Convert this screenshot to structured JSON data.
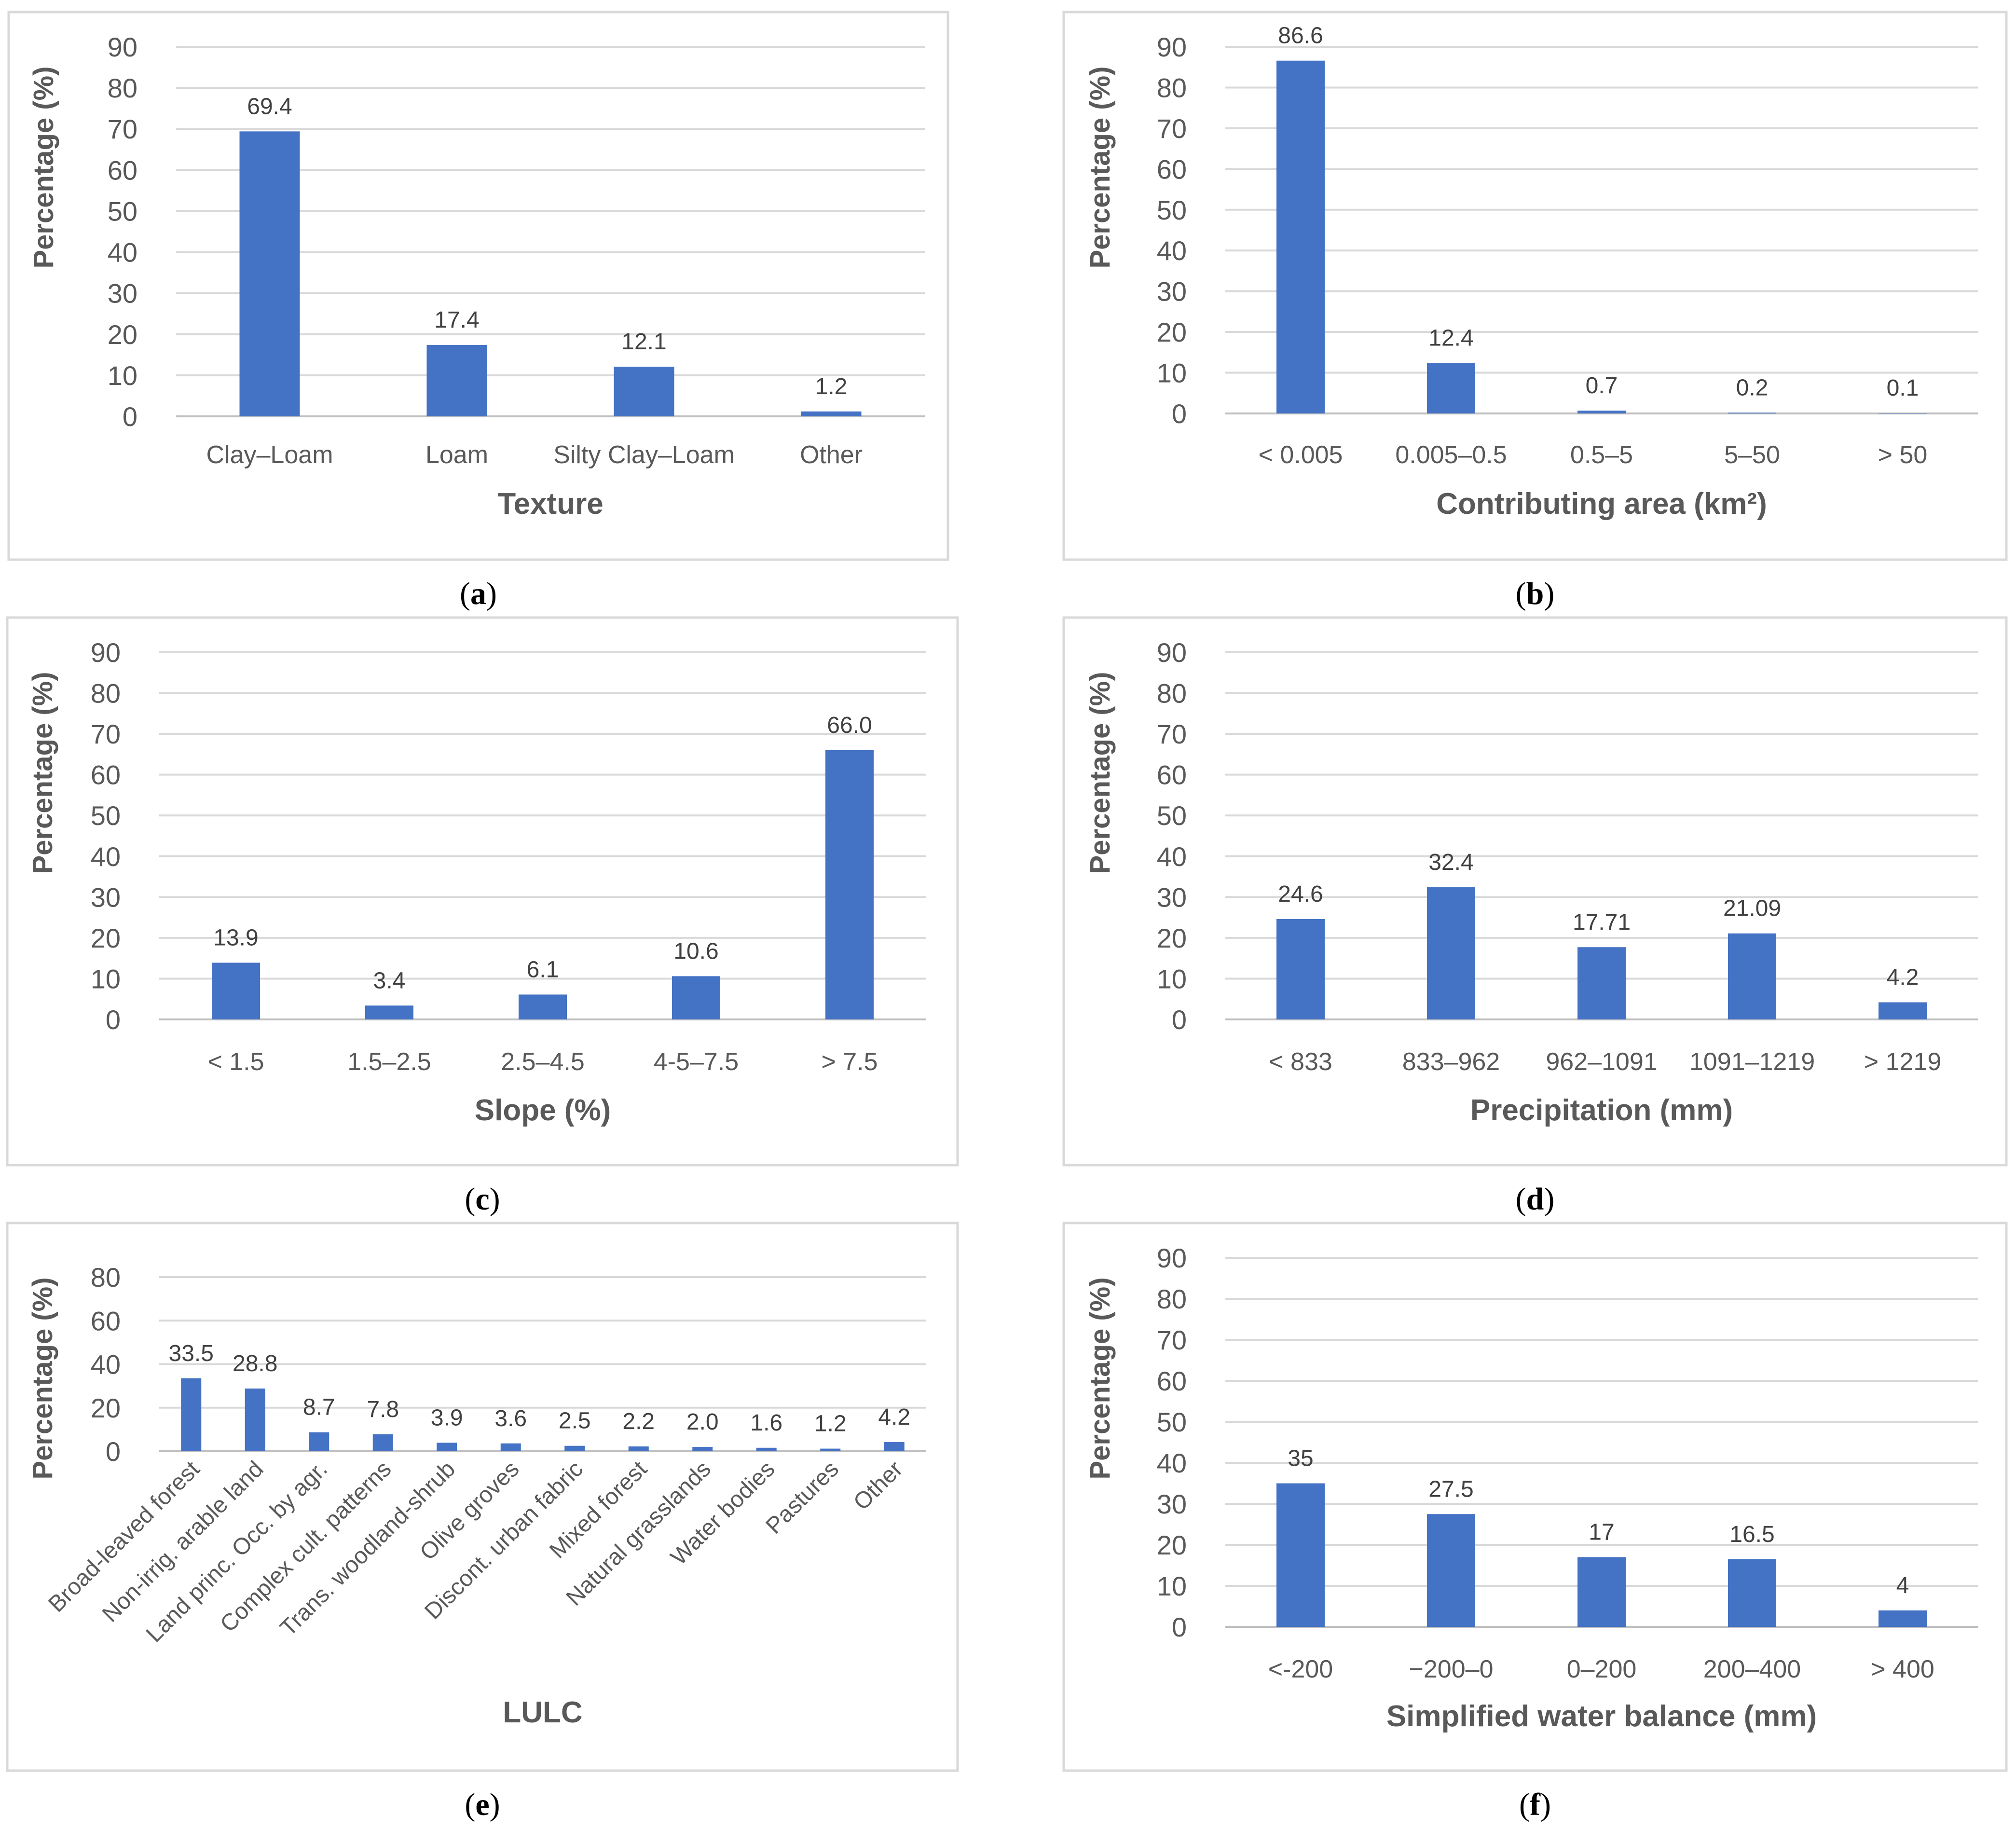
{
  "chart_data": [
    {
      "id": "a",
      "type": "bar",
      "caption_letter": "a",
      "xlabel": "Texture",
      "ylabel": "Percentage (%)",
      "ylim": [
        0,
        90
      ],
      "yticks": [
        "0",
        "10",
        "20",
        "30",
        "40",
        "50",
        "60",
        "70",
        "80",
        "90"
      ],
      "categories": [
        "Clay–Loam",
        "Loam",
        "Silty Clay–Loam",
        "Other"
      ],
      "values": [
        69.4,
        17.4,
        12.1,
        1.2
      ],
      "value_labels": [
        "69.4",
        "17.4",
        "12.1",
        "1.2"
      ],
      "grid": true,
      "legend": "none"
    },
    {
      "id": "b",
      "type": "bar",
      "caption_letter": "b",
      "xlabel": "Contributing area  (km²)",
      "ylabel": "Percentage (%)",
      "ylim": [
        0,
        90
      ],
      "yticks": [
        "0",
        "10",
        "20",
        "30",
        "40",
        "50",
        "60",
        "70",
        "80",
        "90"
      ],
      "categories": [
        "< 0.005",
        "0.005–0.5",
        "0.5–5",
        "5–50",
        "> 50"
      ],
      "values": [
        86.6,
        12.4,
        0.7,
        0.2,
        0.1
      ],
      "value_labels": [
        "86.6",
        "12.4",
        "0.7",
        "0.2",
        "0.1"
      ],
      "grid": true,
      "legend": "none"
    },
    {
      "id": "c",
      "type": "bar",
      "caption_letter": "c",
      "xlabel": "Slope (%)",
      "ylabel": "Percentage (%)",
      "ylim": [
        0,
        90
      ],
      "yticks": [
        "0",
        "10",
        "20",
        "30",
        "40",
        "50",
        "60",
        "70",
        "80",
        "90"
      ],
      "categories": [
        "< 1.5",
        "1.5–2.5",
        "2.5–4.5",
        "4-5–7.5",
        "> 7.5"
      ],
      "values": [
        13.9,
        3.4,
        6.1,
        10.6,
        66.0
      ],
      "value_labels": [
        "13.9",
        "3.4",
        "6.1",
        "10.6",
        "66.0"
      ],
      "grid": true,
      "legend": "none"
    },
    {
      "id": "d",
      "type": "bar",
      "caption_letter": "d",
      "xlabel": "Precipitation (mm)",
      "ylabel": "Percentage (%)",
      "ylim": [
        0,
        90
      ],
      "yticks": [
        "0",
        "10",
        "20",
        "30",
        "40",
        "50",
        "60",
        "70",
        "80",
        "90"
      ],
      "categories": [
        "< 833",
        "833–962",
        "962–1091",
        "1091–1219",
        "> 1219"
      ],
      "values": [
        24.6,
        32.4,
        17.71,
        21.09,
        4.2
      ],
      "value_labels": [
        "24.6",
        "32.4",
        "17.71",
        "21.09",
        "4.2"
      ],
      "grid": true,
      "legend": "none"
    },
    {
      "id": "e",
      "type": "bar",
      "caption_letter": "e",
      "xlabel": "LULC",
      "ylabel": "Percentage (%)",
      "ylim": [
        0,
        80
      ],
      "yticks": [
        "0",
        "20",
        "40",
        "60",
        "80"
      ],
      "categories": [
        "Broad-leaved forest",
        "Non-irrig. arable land",
        "Land princ. Occ. by agr.",
        "Complex cult. patterns",
        "Trans. woodland-shrub",
        "Olive groves",
        "Discont. urban fabric",
        "Mixed forest",
        "Natural grasslands",
        "Water bodies",
        "Pastures",
        "Other"
      ],
      "values": [
        33.5,
        28.8,
        8.7,
        7.8,
        3.9,
        3.6,
        2.5,
        2.2,
        2.0,
        1.6,
        1.2,
        4.2
      ],
      "value_labels": [
        "33.5",
        "28.8",
        "8.7",
        "7.8",
        "3.9",
        "3.6",
        "2.5",
        "2.2",
        "2.0",
        "1.6",
        "1.2",
        "4.2"
      ],
      "grid": true,
      "legend": "none"
    },
    {
      "id": "f",
      "type": "bar",
      "caption_letter": "f",
      "xlabel": "Simplified water balance (mm)",
      "ylabel": "Percentage (%)",
      "ylim": [
        0,
        90
      ],
      "yticks": [
        "0",
        "10",
        "20",
        "30",
        "40",
        "50",
        "60",
        "70",
        "80",
        "90"
      ],
      "categories": [
        "<-200",
        "−200–0",
        "0–200",
        "200–400",
        "> 400"
      ],
      "values": [
        35,
        27.5,
        17,
        16.5,
        4
      ],
      "value_labels": [
        "35",
        "27.5",
        "17",
        "16.5",
        "4"
      ],
      "grid": true,
      "legend": "none"
    }
  ],
  "colors": {
    "bar": "#4472c4",
    "grid": "#d9d9d9",
    "text": "#595959"
  }
}
